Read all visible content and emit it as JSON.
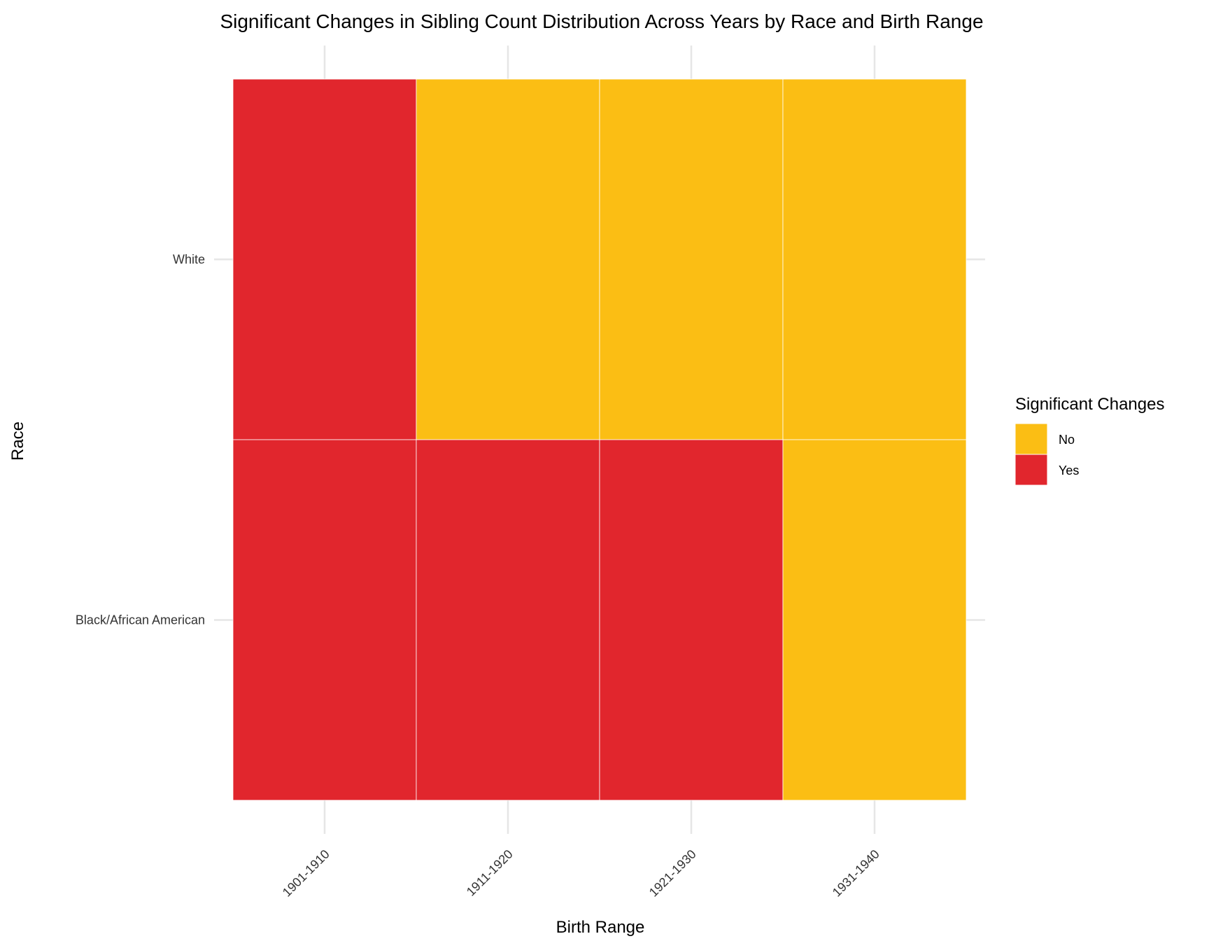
{
  "chart_data": {
    "type": "heatmap",
    "title": "Significant Changes in Sibling Count Distribution Across Years by Race and Birth Range",
    "xlabel": "Birth Range",
    "ylabel": "Race",
    "x_categories": [
      "1901-1910",
      "1911-1920",
      "1921-1930",
      "1931-1940"
    ],
    "y_categories": [
      "White",
      "Black/African American"
    ],
    "cells": [
      {
        "x": "1901-1910",
        "y": "White",
        "value": "Yes"
      },
      {
        "x": "1911-1920",
        "y": "White",
        "value": "No"
      },
      {
        "x": "1921-1930",
        "y": "White",
        "value": "No"
      },
      {
        "x": "1931-1940",
        "y": "White",
        "value": "No"
      },
      {
        "x": "1901-1910",
        "y": "Black/African American",
        "value": "Yes"
      },
      {
        "x": "1911-1920",
        "y": "Black/African American",
        "value": "Yes"
      },
      {
        "x": "1921-1930",
        "y": "Black/African American",
        "value": "Yes"
      },
      {
        "x": "1931-1940",
        "y": "Black/African American",
        "value": "No"
      }
    ],
    "legend": {
      "title": "Significant Changes",
      "position": "right",
      "entries": [
        {
          "label": "No",
          "color": "#FBBE14"
        },
        {
          "label": "Yes",
          "color": "#E1262D"
        }
      ]
    },
    "grid": true
  }
}
